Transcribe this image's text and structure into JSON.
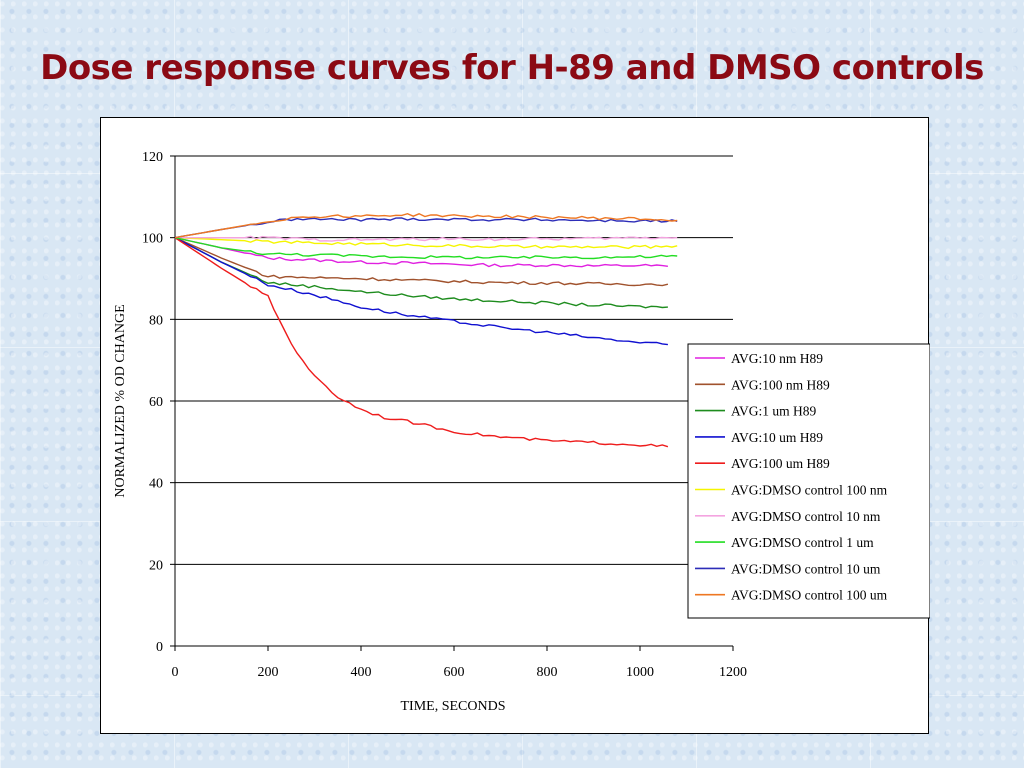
{
  "slide": {
    "title": "Dose response curves for H-89 and DMSO controls"
  },
  "chart_data": {
    "type": "line",
    "title": "",
    "xlabel": "TIME, SECONDS",
    "ylabel": "NORMALIZED % OD CHANGE",
    "xlim": [
      0,
      1200
    ],
    "ylim": [
      0,
      120
    ],
    "x_ticks": [
      0,
      200,
      400,
      600,
      800,
      1000,
      1200
    ],
    "y_ticks": [
      0,
      20,
      40,
      60,
      80,
      100,
      120
    ],
    "grid": "horizontal major gridlines",
    "legend_position": "right",
    "series": [
      {
        "name": "AVG:10 nm H89",
        "color": "#e020e0",
        "points": [
          [
            0,
            100
          ],
          [
            100,
            97.5
          ],
          [
            200,
            95
          ],
          [
            300,
            94.5
          ],
          [
            400,
            94
          ],
          [
            500,
            93.8
          ],
          [
            600,
            93.5
          ],
          [
            700,
            93.2
          ],
          [
            800,
            93.3
          ],
          [
            900,
            93.1
          ],
          [
            1000,
            93.2
          ],
          [
            1060,
            93
          ]
        ]
      },
      {
        "name": "AVG:100 nm H89",
        "color": "#a0522d",
        "points": [
          [
            0,
            100
          ],
          [
            100,
            95
          ],
          [
            200,
            90.5
          ],
          [
            300,
            90.2
          ],
          [
            400,
            90
          ],
          [
            500,
            89.6
          ],
          [
            600,
            89.3
          ],
          [
            700,
            89
          ],
          [
            800,
            88.9
          ],
          [
            900,
            88.7
          ],
          [
            1000,
            88.6
          ],
          [
            1060,
            88.6
          ]
        ]
      },
      {
        "name": "AVG:1 um H89",
        "color": "#1e8c1e",
        "points": [
          [
            0,
            100
          ],
          [
            100,
            94
          ],
          [
            200,
            89
          ],
          [
            300,
            88
          ],
          [
            400,
            86.8
          ],
          [
            500,
            85.8
          ],
          [
            600,
            85
          ],
          [
            700,
            84.5
          ],
          [
            800,
            84
          ],
          [
            900,
            83.5
          ],
          [
            1000,
            83.1
          ],
          [
            1060,
            83
          ]
        ]
      },
      {
        "name": "AVG:10 um H89",
        "color": "#1010d0",
        "points": [
          [
            0,
            100
          ],
          [
            100,
            94
          ],
          [
            200,
            88.5
          ],
          [
            300,
            86
          ],
          [
            400,
            83
          ],
          [
            500,
            81
          ],
          [
            600,
            79.5
          ],
          [
            700,
            78
          ],
          [
            800,
            76.8
          ],
          [
            900,
            75.5
          ],
          [
            1000,
            74.3
          ],
          [
            1060,
            73.8
          ]
        ]
      },
      {
        "name": "AVG:100 um H89",
        "color": "#ee1c1c",
        "points": [
          [
            0,
            100
          ],
          [
            100,
            92.5
          ],
          [
            200,
            85.5
          ],
          [
            250,
            74
          ],
          [
            300,
            66
          ],
          [
            350,
            61
          ],
          [
            400,
            58
          ],
          [
            450,
            56
          ],
          [
            500,
            55
          ],
          [
            600,
            52.5
          ],
          [
            700,
            51.2
          ],
          [
            800,
            50.3
          ],
          [
            900,
            49.8
          ],
          [
            1000,
            49.3
          ],
          [
            1060,
            48.8
          ]
        ]
      },
      {
        "name": "AVG:DMSO control 100 nm",
        "color": "#f5f500",
        "points": [
          [
            0,
            100
          ],
          [
            100,
            99.5
          ],
          [
            200,
            99
          ],
          [
            300,
            98.7
          ],
          [
            400,
            98.5
          ],
          [
            500,
            98.2
          ],
          [
            600,
            98
          ],
          [
            700,
            97.8
          ],
          [
            800,
            97.7
          ],
          [
            900,
            97.7
          ],
          [
            1000,
            97.7
          ],
          [
            1080,
            98
          ]
        ]
      },
      {
        "name": "AVG:DMSO control 10 nm",
        "color": "#f4a4e0",
        "points": [
          [
            0,
            100
          ],
          [
            100,
            100
          ],
          [
            200,
            100
          ],
          [
            300,
            99.5
          ],
          [
            400,
            99.5
          ],
          [
            500,
            99.6
          ],
          [
            600,
            99.7
          ],
          [
            700,
            99.6
          ],
          [
            800,
            99.7
          ],
          [
            900,
            99.8
          ],
          [
            1000,
            100
          ],
          [
            1080,
            100
          ]
        ]
      },
      {
        "name": "AVG:DMSO control 1 um",
        "color": "#22dd22",
        "points": [
          [
            0,
            100
          ],
          [
            100,
            97.5
          ],
          [
            200,
            96
          ],
          [
            300,
            95.8
          ],
          [
            400,
            95.5
          ],
          [
            500,
            95.3
          ],
          [
            600,
            95.2
          ],
          [
            700,
            95.1
          ],
          [
            800,
            95.2
          ],
          [
            900,
            95.2
          ],
          [
            1000,
            95.3
          ],
          [
            1080,
            95.5
          ]
        ]
      },
      {
        "name": "AVG:DMSO control 10 um",
        "color": "#2d2db8",
        "points": [
          [
            0,
            100
          ],
          [
            100,
            102
          ],
          [
            200,
            103.8
          ],
          [
            250,
            104.5
          ],
          [
            300,
            104.5
          ],
          [
            400,
            104.4
          ],
          [
            500,
            104.6
          ],
          [
            600,
            104.5
          ],
          [
            700,
            104.4
          ],
          [
            800,
            104.4
          ],
          [
            900,
            104.2
          ],
          [
            1000,
            104.1
          ],
          [
            1080,
            104
          ]
        ]
      },
      {
        "name": "AVG:DMSO control 100 um",
        "color": "#ee7722",
        "points": [
          [
            0,
            100
          ],
          [
            100,
            102
          ],
          [
            200,
            104
          ],
          [
            250,
            104.8
          ],
          [
            300,
            105.2
          ],
          [
            400,
            105.3
          ],
          [
            500,
            105.6
          ],
          [
            600,
            105.3
          ],
          [
            700,
            105.2
          ],
          [
            800,
            105
          ],
          [
            900,
            104.8
          ],
          [
            1000,
            104.6
          ],
          [
            1080,
            104.2
          ]
        ]
      }
    ]
  }
}
